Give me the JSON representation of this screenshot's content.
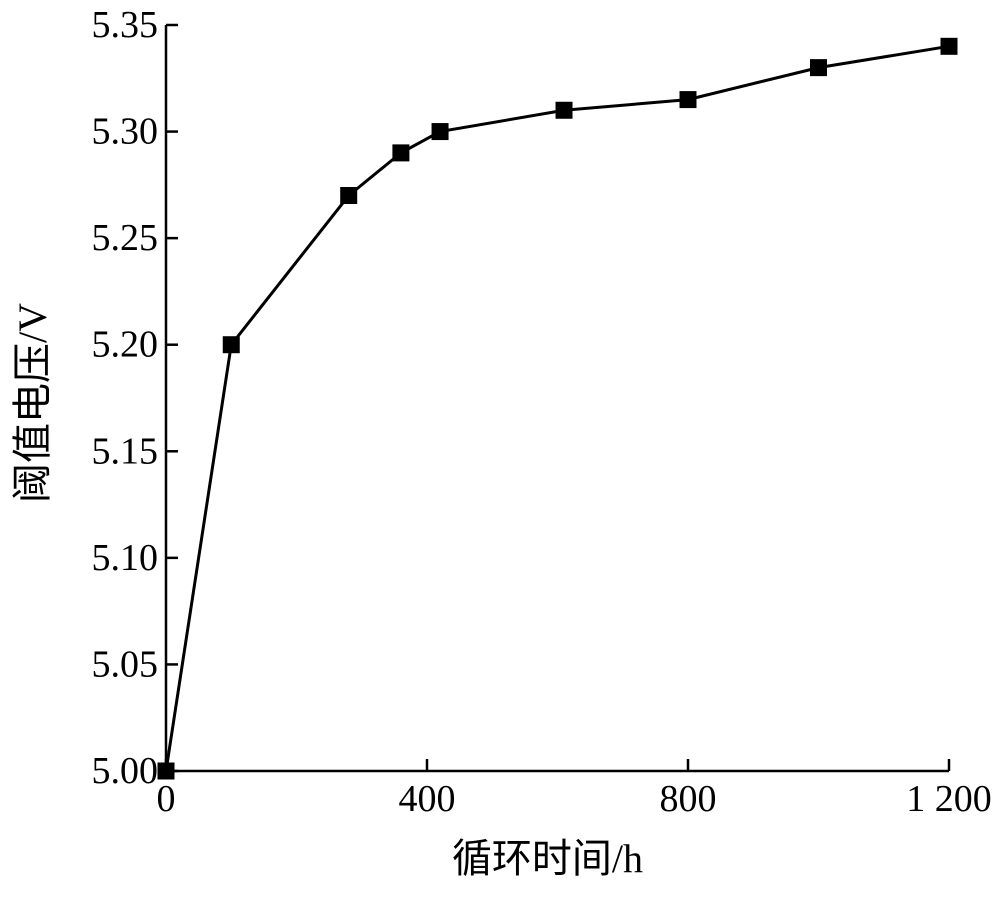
{
  "chart_data": {
    "type": "line",
    "xlabel": "循环时间/h",
    "ylabel": "阈值电压/V",
    "xlim": [
      0,
      1200
    ],
    "ylim": [
      5.0,
      5.35
    ],
    "x_ticks": [
      {
        "value": 0,
        "label": "0"
      },
      {
        "value": 400,
        "label": "400"
      },
      {
        "value": 800,
        "label": "800"
      },
      {
        "value": 1200,
        "label": "1 200"
      }
    ],
    "y_ticks": [
      {
        "value": 5.0,
        "label": "5.00"
      },
      {
        "value": 5.05,
        "label": "5.05"
      },
      {
        "value": 5.1,
        "label": "5.10"
      },
      {
        "value": 5.15,
        "label": "5.15"
      },
      {
        "value": 5.2,
        "label": "5.20"
      },
      {
        "value": 5.25,
        "label": "5.25"
      },
      {
        "value": 5.3,
        "label": "5.30"
      },
      {
        "value": 5.35,
        "label": "5.35"
      }
    ],
    "grid": false,
    "marker": "square",
    "color": "#000000",
    "series": [
      {
        "x": [
          0,
          100,
          280,
          360,
          420,
          610,
          800,
          1000,
          1200
        ],
        "y": [
          5.0,
          5.2,
          5.27,
          5.29,
          5.3,
          5.31,
          5.315,
          5.33,
          5.34
        ]
      }
    ]
  }
}
